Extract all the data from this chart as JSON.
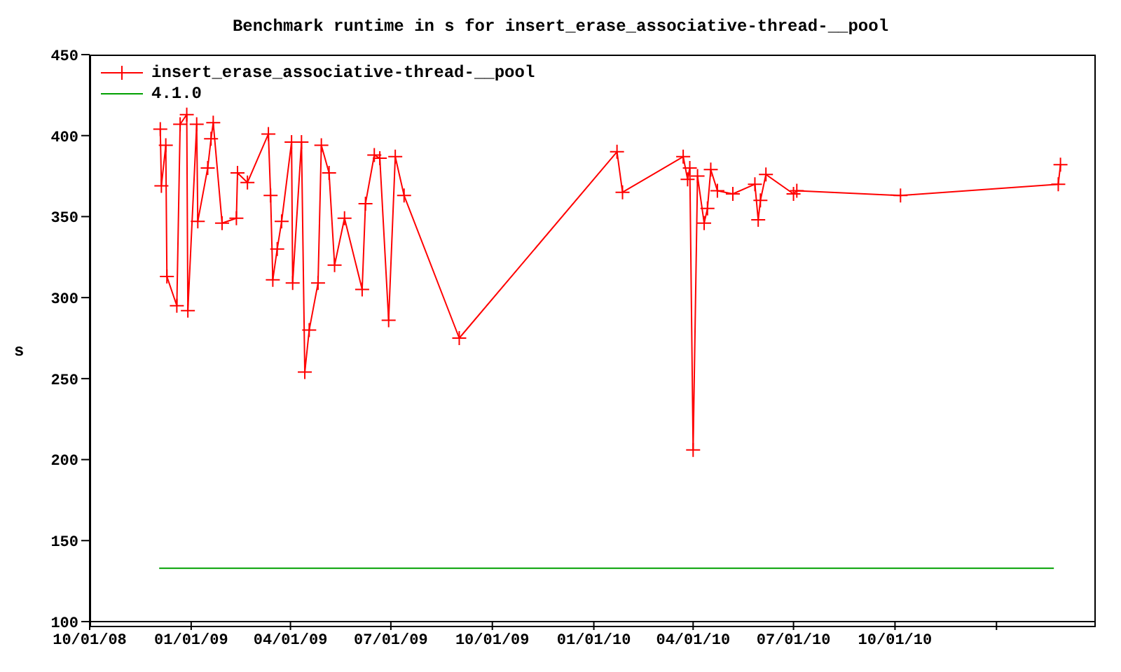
{
  "chart_data": {
    "type": "line",
    "title": "Benchmark runtime in s for insert_erase_associative-thread-__pool",
    "ylabel": "s",
    "xlim": [
      "2008-10-01",
      "2011-04-01"
    ],
    "xticks": [
      {
        "value": "2008-10-01",
        "label": "10/01/08"
      },
      {
        "value": "2009-01-01",
        "label": "01/01/09"
      },
      {
        "value": "2009-04-01",
        "label": "04/01/09"
      },
      {
        "value": "2009-07-01",
        "label": "07/01/09"
      },
      {
        "value": "2009-10-01",
        "label": "10/01/09"
      },
      {
        "value": "2010-01-01",
        "label": "01/01/10"
      },
      {
        "value": "2010-04-01",
        "label": "04/01/10"
      },
      {
        "value": "2010-07-01",
        "label": "07/01/10"
      },
      {
        "value": "2010-10-01",
        "label": "10/01/10"
      },
      {
        "value": "2011-01-01",
        "label": null
      }
    ],
    "ylim": [
      100,
      450
    ],
    "yticks": [
      100,
      150,
      200,
      250,
      300,
      350,
      400,
      450
    ],
    "legend": "top left",
    "series": [
      {
        "name": "insert_erase_associative-thread-__pool",
        "color": "#ff0000",
        "marker": "cross",
        "x": [
          "2008-12-04",
          "2008-12-05",
          "2008-12-09",
          "2008-12-10",
          "2008-12-19",
          "2008-12-22",
          "2008-12-28",
          "2008-12-29",
          "2009-01-06",
          "2009-01-07",
          "2009-01-16",
          "2009-01-19",
          "2009-01-21",
          "2009-01-29",
          "2009-02-11",
          "2009-02-12",
          "2009-02-21",
          "2009-03-12",
          "2009-03-14",
          "2009-03-16",
          "2009-03-20",
          "2009-03-24",
          "2009-04-02",
          "2009-04-03",
          "2009-04-11",
          "2009-04-14",
          "2009-04-18",
          "2009-04-26",
          "2009-04-29",
          "2009-05-06",
          "2009-05-11",
          "2009-05-20",
          "2009-06-05",
          "2009-06-08",
          "2009-06-16",
          "2009-06-21",
          "2009-06-29",
          "2009-07-05",
          "2009-07-13",
          "2009-09-01",
          "2010-01-22",
          "2010-01-27",
          "2010-03-23",
          "2010-03-27",
          "2010-03-29",
          "2010-04-01",
          "2010-04-05",
          "2010-04-11",
          "2010-04-14",
          "2010-04-17",
          "2010-04-23",
          "2010-05-07",
          "2010-05-27",
          "2010-05-30",
          "2010-06-01",
          "2010-06-06",
          "2010-07-01",
          "2010-07-04",
          "2010-10-06",
          "2011-02-26",
          "2011-02-28"
        ],
        "values": [
          404,
          369,
          394,
          313,
          295,
          407,
          413,
          292,
          407,
          347,
          380,
          398,
          408,
          346,
          349,
          377,
          371,
          401,
          363,
          311,
          330,
          347,
          396,
          309,
          396,
          254,
          280,
          309,
          394,
          377,
          320,
          349,
          305,
          358,
          388,
          386,
          286,
          387,
          363,
          275,
          390,
          365,
          387,
          373,
          380,
          206,
          375,
          346,
          355,
          379,
          366,
          364,
          370,
          348,
          360,
          376,
          364,
          366,
          363,
          370,
          382
        ]
      },
      {
        "name": "4.1.0",
        "color": "#00a000",
        "marker": "none",
        "x": [
          "2008-12-03",
          "2011-02-22"
        ],
        "values": [
          133,
          133
        ]
      }
    ]
  }
}
